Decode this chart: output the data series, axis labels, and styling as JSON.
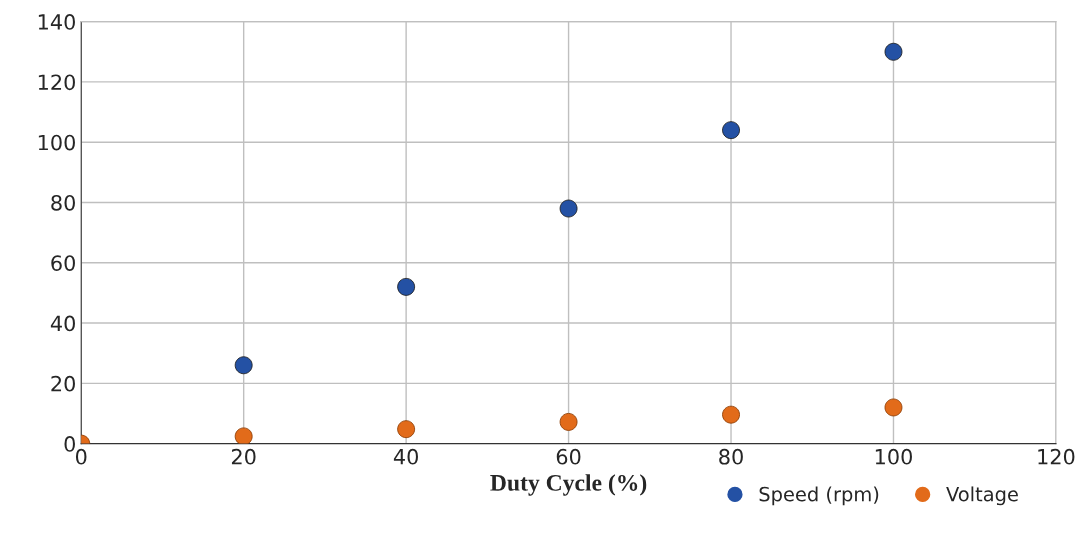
{
  "chart_data": {
    "type": "scatter",
    "xlabel": "Duty Cycle (%)",
    "x": [
      0,
      20,
      40,
      60,
      80,
      100
    ],
    "series": [
      {
        "name": "Speed (rpm)",
        "color": "#2451a4",
        "values": [
          null,
          26,
          52,
          78,
          104,
          130
        ]
      },
      {
        "name": "Voltage",
        "color": "#e26b1a",
        "values": [
          0,
          2.4,
          4.8,
          7.2,
          9.6,
          12
        ]
      }
    ],
    "xlim": [
      0,
      120
    ],
    "xticks": [
      0,
      20,
      40,
      60,
      80,
      100,
      120
    ],
    "ylim": [
      0,
      140
    ],
    "yticks": [
      0,
      20,
      40,
      60,
      80,
      100,
      120,
      140
    ],
    "grid": true,
    "legend": "bottom right",
    "marker": "circle"
  }
}
